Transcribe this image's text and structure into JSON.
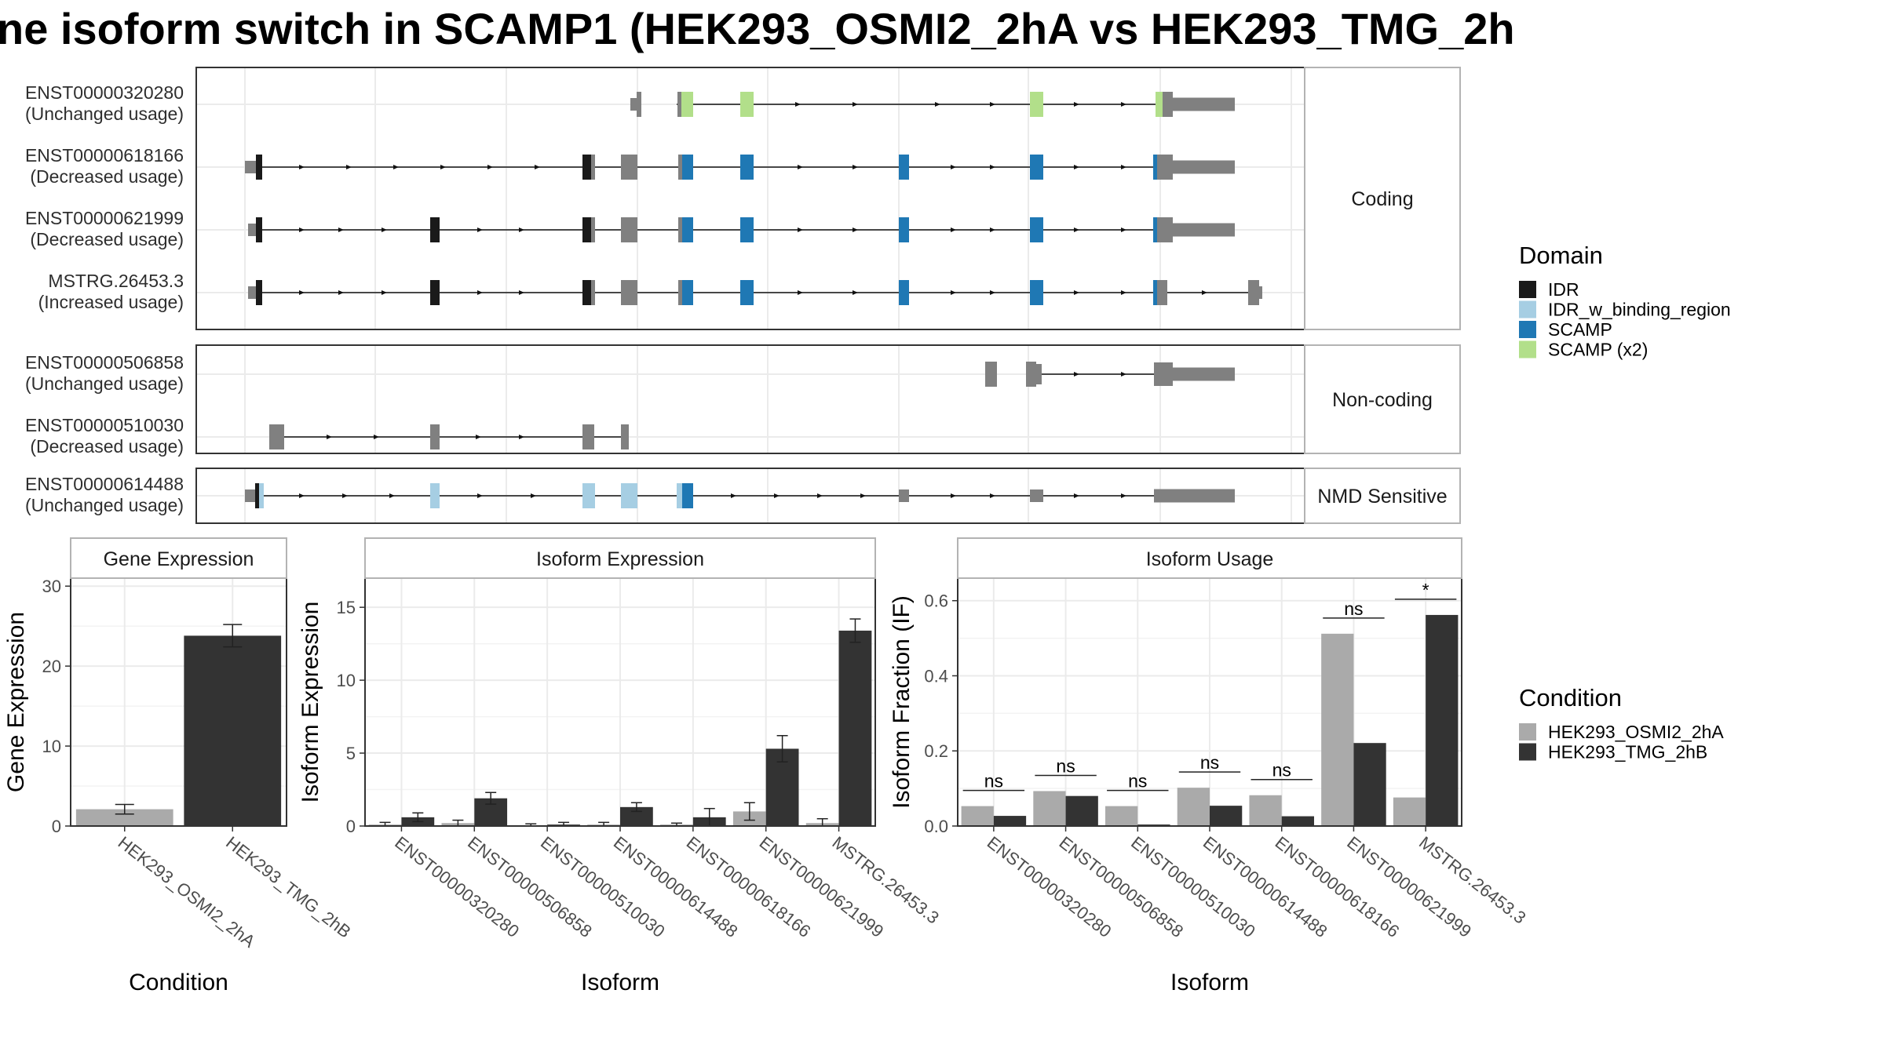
{
  "title": "ne isoform switch in SCAMP1 (HEK293_OSMI2_2hA vs HEK293_TMG_2h",
  "colors": {
    "IDR": "#1a1a1a",
    "IDR_w_binding_region": "#a6cee3",
    "SCAMP": "#1f78b4",
    "SCAMP (x2)": "#b2df8a",
    "exon": "#808080",
    "HEK293_OSMI2_2hA": "#aaaaaa",
    "HEK293_TMG_2hB": "#333333",
    "grid": "#ebebeb",
    "panel_border": "#333333",
    "strip_fill": "#ffffff",
    "strip_border": "#b3b3b3"
  },
  "transcripts": {
    "Coding": [
      {
        "id": "ENST00000320280",
        "usage": "(Unchanged usage)"
      },
      {
        "id": "ENST00000618166",
        "usage": "(Decreased usage)"
      },
      {
        "id": "ENST00000621999",
        "usage": "(Decreased usage)"
      },
      {
        "id": "MSTRG.26453.3",
        "usage": "(Increased usage)"
      }
    ],
    "Non-coding": [
      {
        "id": "ENST00000506858",
        "usage": "(Unchanged usage)"
      },
      {
        "id": "ENST00000510030",
        "usage": "(Decreased usage)"
      }
    ],
    "NMD Sensitive": [
      {
        "id": "ENST00000614488",
        "usage": "(Unchanged usage)"
      }
    ]
  },
  "transcript_groups": [
    "Coding",
    "Non-coding",
    "NMD Sensitive"
  ],
  "legend_domain": {
    "title": "Domain",
    "items": [
      "IDR",
      "IDR_w_binding_region",
      "SCAMP",
      "SCAMP (x2)"
    ]
  },
  "legend_condition": {
    "title": "Condition",
    "items": [
      "HEK293_OSMI2_2hA",
      "HEK293_TMG_2hB"
    ]
  },
  "chart_data": [
    {
      "type": "bar",
      "title": "Gene Expression",
      "xlabel": "Condition",
      "ylabel": "Gene Expression",
      "categories": [
        "HEK293_OSMI2_2hA",
        "HEK293_TMG_2hB"
      ],
      "values": [
        2.1,
        23.8
      ],
      "errors": [
        0.6,
        1.4
      ],
      "ylim": [
        0,
        31
      ],
      "yticks": [
        0,
        10,
        20,
        30
      ],
      "grid": true
    },
    {
      "type": "bar",
      "title": "Isoform Expression",
      "xlabel": "Isoform",
      "ylabel": "Isoform Expression",
      "categories": [
        "ENST00000320280",
        "ENST00000506858",
        "ENST00000510030",
        "ENST00000614488",
        "ENST00000618166",
        "ENST00000621999",
        "MSTRG.26453.3"
      ],
      "series": [
        {
          "name": "HEK293_OSMI2_2hA",
          "values": [
            0.1,
            0.2,
            0.05,
            0.1,
            0.1,
            1.0,
            0.2
          ],
          "errors": [
            0.15,
            0.2,
            0.1,
            0.15,
            0.1,
            0.6,
            0.3
          ]
        },
        {
          "name": "HEK293_TMG_2hB",
          "values": [
            0.6,
            1.9,
            0.1,
            1.3,
            0.6,
            5.3,
            13.4
          ],
          "errors": [
            0.3,
            0.4,
            0.15,
            0.3,
            0.6,
            0.9,
            0.8
          ]
        }
      ],
      "ylim": [
        0,
        17
      ],
      "yticks": [
        0,
        5,
        10,
        15
      ],
      "grid": true
    },
    {
      "type": "bar",
      "title": "Isoform Usage",
      "xlabel": "Isoform",
      "ylabel": "Isoform Fraction (IF)",
      "categories": [
        "ENST00000320280",
        "ENST00000506858",
        "ENST00000510030",
        "ENST00000614488",
        "ENST00000618166",
        "ENST00000621999",
        "MSTRG.26453.3"
      ],
      "series": [
        {
          "name": "HEK293_OSMI2_2hA",
          "values": [
            0.053,
            0.093,
            0.053,
            0.102,
            0.082,
            0.512,
            0.076
          ]
        },
        {
          "name": "HEK293_TMG_2hB",
          "values": [
            0.027,
            0.08,
            0.004,
            0.054,
            0.026,
            0.221,
            0.562
          ]
        }
      ],
      "significance": [
        "ns",
        "ns",
        "ns",
        "ns",
        "ns",
        "ns",
        "*"
      ],
      "ylim": [
        0,
        0.66
      ],
      "yticks": [
        0.0,
        0.2,
        0.4,
        0.6
      ],
      "ytick_labels": [
        "0.0",
        "0.2",
        "0.4",
        "0.6"
      ],
      "grid": true
    }
  ]
}
